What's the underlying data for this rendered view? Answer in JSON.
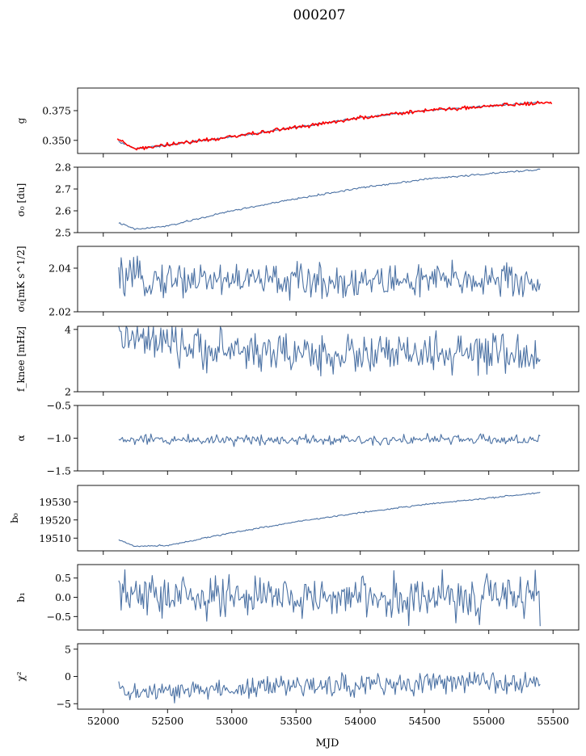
{
  "figure": {
    "title": "000207",
    "xlabel": "MJD"
  },
  "colors": {
    "series": "#4c72a4",
    "overlay": "#ff0000",
    "axis": "#000000"
  },
  "chart_data": [
    {
      "type": "line",
      "id": "g",
      "ylabel": "g",
      "xlim": [
        51800,
        55700
      ],
      "ylim": [
        0.339,
        0.394
      ],
      "yticks": [
        0.35,
        0.375
      ],
      "ytick_labels": [
        "0.350",
        "0.375"
      ],
      "series": [
        {
          "color": "#4c72a4",
          "noise": 0.0004,
          "shape": [
            [
              52120,
              0.349
            ],
            [
              52250,
              0.343
            ],
            [
              52500,
              0.346
            ],
            [
              53000,
              0.353
            ],
            [
              53500,
              0.361
            ],
            [
              54000,
              0.369
            ],
            [
              54500,
              0.375
            ],
            [
              55000,
              0.379
            ],
            [
              55400,
              0.382
            ]
          ]
        },
        {
          "color": "#ff0000",
          "noise": 0.0008,
          "shape": [
            [
              52110,
              0.351
            ],
            [
              52250,
              0.343
            ],
            [
              52500,
              0.346
            ],
            [
              53000,
              0.353
            ],
            [
              53500,
              0.361
            ],
            [
              54000,
              0.369
            ],
            [
              54500,
              0.375
            ],
            [
              55000,
              0.379
            ],
            [
              55490,
              0.382
            ]
          ]
        }
      ]
    },
    {
      "type": "line",
      "id": "sigma0",
      "ylabel": "σ₀ [du]",
      "xlim": [
        51800,
        55700
      ],
      "ylim": [
        2.5,
        2.8
      ],
      "yticks": [
        2.5,
        2.6,
        2.7,
        2.8
      ],
      "ytick_labels": [
        "2.5",
        "2.6",
        "2.7",
        "2.8"
      ],
      "series": [
        {
          "color": "#4c72a4",
          "noise": 0.002,
          "shape": [
            [
              52120,
              2.545
            ],
            [
              52250,
              2.515
            ],
            [
              52500,
              2.53
            ],
            [
              53000,
              2.6
            ],
            [
              53500,
              2.655
            ],
            [
              54000,
              2.705
            ],
            [
              54500,
              2.745
            ],
            [
              55000,
              2.77
            ],
            [
              55400,
              2.79
            ]
          ]
        }
      ]
    },
    {
      "type": "line",
      "id": "sigma0-noise",
      "ylabel": "σ₀[mK s^1/2]",
      "xlim": [
        51800,
        55700
      ],
      "ylim": [
        2.02,
        2.05
      ],
      "yticks": [
        2.02,
        2.04
      ],
      "ytick_labels": [
        "2.02",
        "2.04"
      ],
      "series": [
        {
          "color": "#4c72a4",
          "noise": 0.004,
          "shape": [
            [
              52120,
              2.035
            ],
            [
              52500,
              2.035
            ],
            [
              53000,
              2.035
            ],
            [
              53500,
              2.034
            ],
            [
              54000,
              2.034
            ],
            [
              54500,
              2.034
            ],
            [
              55000,
              2.035
            ],
            [
              55400,
              2.033
            ]
          ]
        }
      ]
    },
    {
      "type": "line",
      "id": "fknee",
      "ylabel": "f_knee [mHz]",
      "xlim": [
        51800,
        55700
      ],
      "ylim": [
        2,
        4.1
      ],
      "yticks": [
        2,
        4
      ],
      "ytick_labels": [
        "2",
        "4"
      ],
      "series": [
        {
          "color": "#4c72a4",
          "noise": 0.32,
          "shape": [
            [
              52120,
              3.8
            ],
            [
              52300,
              3.6
            ],
            [
              52700,
              3.4
            ],
            [
              53200,
              3.3
            ],
            [
              53700,
              3.2
            ],
            [
              54200,
              3.2
            ],
            [
              54700,
              3.2
            ],
            [
              55000,
              3.2
            ],
            [
              55400,
              3.1
            ]
          ]
        }
      ]
    },
    {
      "type": "line",
      "id": "alpha",
      "ylabel": "α",
      "xlim": [
        51800,
        55700
      ],
      "ylim": [
        -1.5,
        -0.5
      ],
      "yticks": [
        -1.5,
        -1.0,
        -0.5
      ],
      "ytick_labels": [
        "−1.5",
        "−1.0",
        "−0.5"
      ],
      "series": [
        {
          "color": "#4c72a4",
          "noise": 0.04,
          "shape": [
            [
              52120,
              -1.03
            ],
            [
              53000,
              -1.02
            ],
            [
              54000,
              -1.02
            ],
            [
              55000,
              -1.02
            ],
            [
              55400,
              -1.03
            ]
          ]
        }
      ]
    },
    {
      "type": "line",
      "id": "b0",
      "ylabel": "b₀",
      "xlim": [
        51800,
        55700
      ],
      "ylim": [
        19503,
        19539
      ],
      "yticks": [
        19510,
        19520,
        19530
      ],
      "ytick_labels": [
        "19510",
        "19520",
        "19530"
      ],
      "series": [
        {
          "color": "#4c72a4",
          "noise": 0.2,
          "shape": [
            [
              52120,
              19509
            ],
            [
              52250,
              19505.5
            ],
            [
              52500,
              19506
            ],
            [
              53000,
              19513
            ],
            [
              53500,
              19519
            ],
            [
              54000,
              19524
            ],
            [
              54500,
              19528.5
            ],
            [
              55000,
              19532
            ],
            [
              55400,
              19535
            ]
          ]
        }
      ]
    },
    {
      "type": "line",
      "id": "b1",
      "ylabel": "b₁",
      "xlim": [
        51800,
        55700
      ],
      "ylim": [
        -0.85,
        0.85
      ],
      "yticks": [
        -0.5,
        0.0,
        0.5
      ],
      "ytick_labels": [
        "−0.5",
        "0.0",
        "0.5"
      ],
      "series": [
        {
          "color": "#4c72a4",
          "noise": 0.28,
          "shape": [
            [
              52120,
              0.05
            ],
            [
              53000,
              0.0
            ],
            [
              54000,
              0.0
            ],
            [
              55000,
              0.0
            ],
            [
              55400,
              0.0
            ]
          ]
        }
      ]
    },
    {
      "type": "line",
      "id": "chi2",
      "ylabel": "χ²",
      "xlim": [
        51800,
        55700
      ],
      "ylim": [
        -6,
        6
      ],
      "yticks": [
        -5,
        0,
        5
      ],
      "ytick_labels": [
        "−5",
        "0",
        "5"
      ],
      "series": [
        {
          "color": "#4c72a4",
          "noise": 1.0,
          "shape": [
            [
              52120,
              -2.8
            ],
            [
              52400,
              -3.0
            ],
            [
              53000,
              -2.2
            ],
            [
              53500,
              -1.8
            ],
            [
              54000,
              -1.5
            ],
            [
              54500,
              -1.2
            ],
            [
              55000,
              -1.0
            ],
            [
              55400,
              -0.6
            ]
          ]
        }
      ]
    }
  ],
  "xaxis": {
    "ticks": [
      52000,
      52500,
      53000,
      53500,
      54000,
      54500,
      55000,
      55500
    ],
    "tick_labels": [
      "52000",
      "52500",
      "53000",
      "53500",
      "54000",
      "54500",
      "55000",
      "55500"
    ]
  }
}
